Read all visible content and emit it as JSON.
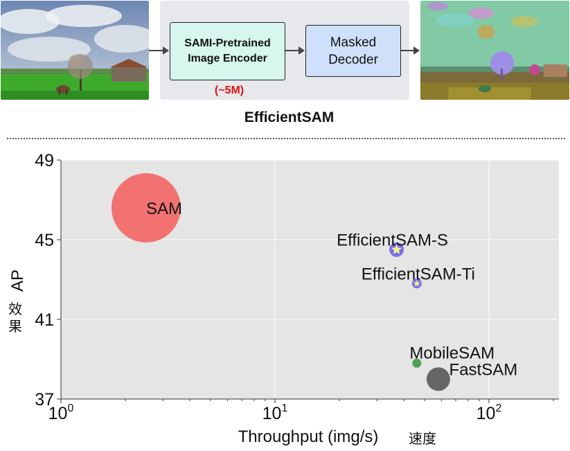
{
  "pipeline": {
    "encoder_line1": "SAMI-Pretrained",
    "encoder_line2": "Image Encoder",
    "encoder_params": "(~5M)",
    "decoder_line1": "Masked",
    "decoder_line2": "Decoder",
    "title": "EfficientSAM"
  },
  "chart_data": {
    "type": "scatter",
    "xscale": "log",
    "xlim": [
      1,
      210
    ],
    "ylim": [
      37,
      49
    ],
    "xticks": [
      {
        "value": 1,
        "base": "10",
        "exp": "0"
      },
      {
        "value": 10,
        "base": "10",
        "exp": "1"
      },
      {
        "value": 100,
        "base": "10",
        "exp": "2"
      }
    ],
    "yticks": [
      37,
      41,
      45,
      49
    ],
    "xlabel": "Throughput (img/s)",
    "xlabel_cn": "速度",
    "ylabel": "AP",
    "ylabel_cn": "效果",
    "grid": true,
    "points": [
      {
        "name": "SAM",
        "x": 2.5,
        "y": 46.6,
        "size": 50,
        "color": "#f26b6b",
        "marker": "circle"
      },
      {
        "name": "EfficientSAM-S",
        "x": 37,
        "y": 44.5,
        "size": 10.5,
        "color": "#7b6fe8",
        "marker": "circle-star"
      },
      {
        "name": "EfficientSAM-Ti",
        "x": 46,
        "y": 42.8,
        "size": 7,
        "color": "#7b6fe8",
        "marker": "circle-star"
      },
      {
        "name": "MobileSAM",
        "x": 46,
        "y": 38.8,
        "size": 6.5,
        "color": "#4fa055",
        "marker": "circle"
      },
      {
        "name": "FastSAM",
        "x": 58,
        "y": 38.0,
        "size": 17,
        "color": "#666666",
        "marker": "circle"
      }
    ]
  }
}
